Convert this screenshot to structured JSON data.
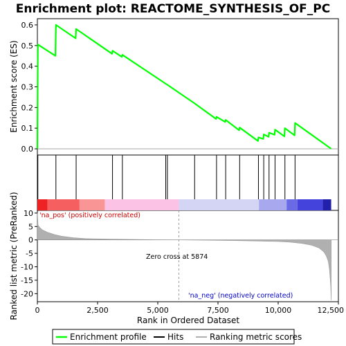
{
  "chart_data": {
    "type": "line",
    "title": "Enrichment plot: REACTOME_SYNTHESIS_OF_PC",
    "enrichment_panel": {
      "ylabel": "Enrichment score (ES)",
      "ylim": [
        -0.03,
        0.63
      ],
      "yticks": [
        0.0,
        0.1,
        0.2,
        0.3,
        0.4,
        0.5,
        0.6
      ],
      "ytick_labels": [
        "0.0",
        "0.1",
        "0.2",
        "0.3",
        "0.4",
        "0.5",
        "0.6"
      ],
      "series": [
        {
          "name": "Enrichment profile",
          "color": "#00ff00",
          "x": [
            0,
            20,
            750,
            770,
            1590,
            1610,
            3100,
            3120,
            3510,
            3530,
            5330,
            5400,
            6530,
            7420,
            7440,
            7800,
            7820,
            8380,
            8400,
            9160,
            9180,
            9380,
            9400,
            9600,
            9620,
            9850,
            9870,
            10260,
            10280,
            10680,
            10700,
            12200
          ],
          "y": [
            0.0,
            0.505,
            0.45,
            0.6,
            0.535,
            0.58,
            0.46,
            0.475,
            0.445,
            0.455,
            0.315,
            0.31,
            0.22,
            0.145,
            0.155,
            0.13,
            0.14,
            0.09,
            0.103,
            0.038,
            0.055,
            0.048,
            0.07,
            0.058,
            0.078,
            0.068,
            0.093,
            0.06,
            0.1,
            0.065,
            0.125,
            0.0
          ]
        }
      ]
    },
    "hits": {
      "name": "Hits",
      "positions": [
        20,
        770,
        1610,
        3120,
        3530,
        5330,
        5400,
        6530,
        7440,
        7820,
        8400,
        9180,
        9400,
        9620,
        9870,
        10280,
        10700
      ]
    },
    "color_band": {
      "segments": [
        {
          "from": 0,
          "to": 420,
          "color": "#ee2222"
        },
        {
          "from": 420,
          "to": 1750,
          "color": "#f55f5f"
        },
        {
          "from": 1750,
          "to": 2800,
          "color": "#f99595"
        },
        {
          "from": 2800,
          "to": 5874,
          "color": "#fbc2e6"
        },
        {
          "from": 5874,
          "to": 9200,
          "color": "#d4d4f5"
        },
        {
          "from": 9200,
          "to": 10350,
          "color": "#a8a8ee"
        },
        {
          "from": 10350,
          "to": 10800,
          "color": "#6a6ae6"
        },
        {
          "from": 10800,
          "to": 11850,
          "color": "#4444dd"
        },
        {
          "from": 11850,
          "to": 12200,
          "color": "#2020aa"
        }
      ]
    },
    "metric_panel": {
      "name": "Ranking metric scores",
      "ylabel": "Ranked list metric (PreRanked)",
      "ylim": [
        -23,
        11
      ],
      "yticks": [
        10,
        5,
        0,
        -5,
        -10,
        -15,
        -20
      ],
      "ytick_labels": [
        "10",
        "5",
        "0",
        "-5",
        "-10",
        "-15",
        "-20"
      ],
      "x": [
        0,
        30,
        100,
        200,
        400,
        700,
        1000,
        1500,
        2000,
        3000,
        4000,
        5000,
        5874,
        7000,
        8000,
        9000,
        10000,
        10500,
        11000,
        11400,
        11700,
        11900,
        12000,
        12080,
        12130,
        12180,
        12200
      ],
      "y": [
        10.2,
        5.5,
        4.6,
        3.8,
        2.9,
        2.0,
        1.4,
        0.8,
        0.5,
        0.28,
        0.15,
        0.06,
        0.0,
        -0.1,
        -0.22,
        -0.38,
        -0.6,
        -0.85,
        -1.3,
        -2.0,
        -3.0,
        -4.5,
        -6.0,
        -8.0,
        -11.0,
        -17.0,
        -22.5
      ],
      "fill_color": "#b0b0b0",
      "zero_cross_label": "Zero cross at 5874",
      "pos_label": "'na_pos' (positively correlated)",
      "neg_label": "'na_neg' (negatively correlated)",
      "pos_color": "#cc0000",
      "neg_color": "#0000cc"
    },
    "xaxis": {
      "label": "Rank in Ordered Dataset",
      "xlim": [
        0,
        12500
      ],
      "ticks": [
        0,
        2500,
        5000,
        7500,
        10000,
        12500
      ],
      "tick_labels": [
        "0",
        "2,500",
        "5,000",
        "7,500",
        "10,000",
        "12,500"
      ],
      "zero_cross": 5874
    },
    "legend": {
      "placement": "bottom",
      "entries": [
        {
          "label": "Enrichment profile",
          "color": "#00ff00"
        },
        {
          "label": "Hits",
          "color": "#000000"
        },
        {
          "label": "Ranking metric scores",
          "color": "#b0b0b0"
        }
      ]
    }
  }
}
